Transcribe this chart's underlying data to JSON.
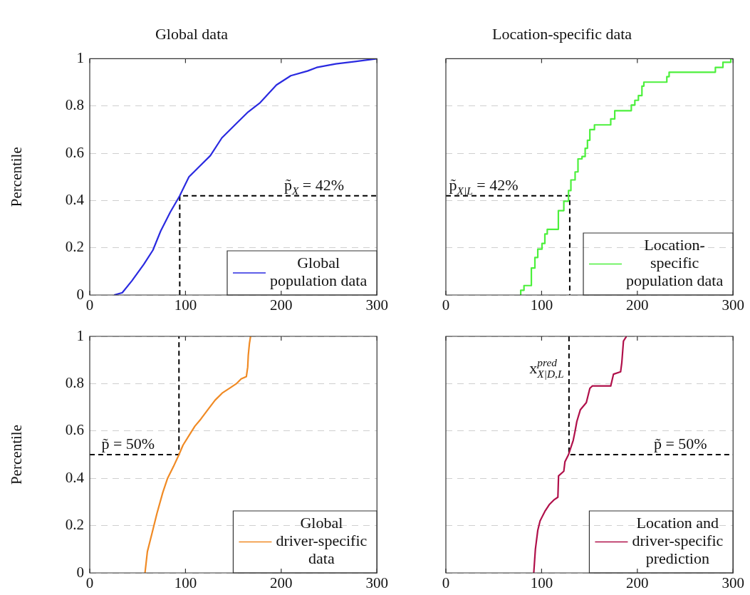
{
  "chart_data": [
    {
      "type": "line",
      "title": "Global data",
      "ylabel": "Percentile",
      "xlim": [
        0,
        300
      ],
      "xticks": [
        0,
        100,
        200,
        300
      ],
      "ylim": [
        0,
        1
      ],
      "yticks": [
        0,
        0.2,
        0.4,
        0.6,
        0.8,
        1
      ],
      "grid": "y",
      "legend": "bottom right",
      "marker": "none",
      "series": [
        {
          "name": "Global population data",
          "color": "#2a2ae0",
          "x": [
            25.5,
            34,
            44,
            56.5,
            66,
            74,
            84,
            94,
            103.6,
            113.5,
            126,
            138,
            153,
            165.5,
            178,
            195,
            210,
            227.5,
            237,
            257,
            277,
            300
          ],
          "values": [
            0,
            0.01,
            0.06,
            0.13,
            0.19,
            0.27,
            0.35,
            0.42,
            0.5,
            0.54,
            0.59,
            0.665,
            0.725,
            0.775,
            0.814,
            0.889,
            0.928,
            0.948,
            0.963,
            0.978,
            0.988,
            1
          ]
        },
        {
          "color": "#000000",
          "line_style": "dashed",
          "x": [
            94,
            94,
            300
          ],
          "values": [
            0,
            0.42,
            0.42
          ]
        }
      ],
      "annotations": [
        {
          "text": "p̃$_{X}$ = 42%",
          "x": 235,
          "y": 0.42
        }
      ]
    },
    {
      "type": "line",
      "title": "Location-specific data",
      "xlim": [
        0,
        300
      ],
      "xticks": [
        0,
        100,
        200,
        300
      ],
      "ylim": [
        0,
        1
      ],
      "yticks": [
        0,
        0.2,
        0.4,
        0.6,
        0.8,
        1
      ],
      "grid": "y",
      "legend": "bottom right",
      "marker": "none",
      "tick_labels": "x",
      "series": [
        {
          "name": "Location-specific population data",
          "type": "step",
          "color": "#4cf03c",
          "x": [
            78.2,
            78.2,
            81.6,
            89.3,
            93,
            96,
            100.4,
            103.4,
            105.9,
            117.5,
            123.2,
            128.1,
            130.6,
            135,
            138,
            142.2,
            145.5,
            147.9,
            150.4,
            155.2,
            172.2,
            176.4,
            193.7,
            197.4,
            201.1,
            204.8,
            206.8,
            230.8,
            233.2,
            281.5,
            289.4,
            297.6,
            300
          ],
          "values": [
            0,
            0.02,
            0.04,
            0.114,
            0.159,
            0.194,
            0.218,
            0.258,
            0.278,
            0.357,
            0.397,
            0.442,
            0.487,
            0.521,
            0.576,
            0.586,
            0.621,
            0.655,
            0.7,
            0.72,
            0.745,
            0.78,
            0.804,
            0.824,
            0.844,
            0.884,
            0.901,
            0.924,
            0.943,
            0.963,
            0.985,
            1,
            1
          ]
        },
        {
          "color": "#000000",
          "line_style": "dashed",
          "x": [
            0,
            129.4,
            129.4
          ],
          "values": [
            0.42,
            0.42,
            0
          ]
        }
      ],
      "annotations": [
        {
          "text": "p̃$_{X|L}$ = 42%",
          "x": 40,
          "y": 0.42
        }
      ]
    },
    {
      "type": "line",
      "ylabel": "Percentile",
      "xlim": [
        0,
        300
      ],
      "xticks": [
        0,
        100,
        200,
        300
      ],
      "ylim": [
        0,
        1
      ],
      "yticks": [
        0,
        0.2,
        0.4,
        0.6,
        0.8,
        1
      ],
      "grid": "y",
      "legend": "bottom right",
      "marker": "none",
      "series": [
        {
          "name": "Global driver-specific data",
          "color": "#f08a24",
          "x": [
            57.7,
            60.2,
            65.2,
            70.1,
            76.3,
            81.3,
            87.5,
            93.2,
            97.4,
            103.6,
            109.8,
            116,
            123.4,
            130.9,
            138.3,
            145.7,
            153.2,
            158.1,
            163.6,
            165,
            165.6,
            166.8,
            168
          ],
          "values": [
            0,
            0.09,
            0.17,
            0.25,
            0.34,
            0.4,
            0.45,
            0.5,
            0.54,
            0.58,
            0.62,
            0.65,
            0.69,
            0.73,
            0.76,
            0.78,
            0.8,
            0.82,
            0.83,
            0.87,
            0.92,
            0.97,
            1
          ]
        },
        {
          "color": "#000000",
          "line_style": "dashed",
          "x": [
            0,
            93.2,
            93.2
          ],
          "values": [
            0.5,
            0.5,
            1
          ]
        }
      ],
      "annotations": [
        {
          "text": "p̃ = 50%",
          "x": 40,
          "y": 0.5
        }
      ]
    },
    {
      "type": "line",
      "xlim": [
        0,
        300
      ],
      "xticks": [
        0,
        100,
        200,
        300
      ],
      "ylim": [
        0,
        1
      ],
      "yticks": [
        0,
        0.2,
        0.4,
        0.6,
        0.8,
        1
      ],
      "grid": "y",
      "legend": "bottom right",
      "marker": "none",
      "tick_labels": "x",
      "series": [
        {
          "name": "Location and driver-specific prediction",
          "color": "#b0104a",
          "x": [
            91.8,
            93.5,
            96,
            98.4,
            103.4,
            108.3,
            113.3,
            117,
            117.7,
            123.2,
            124.4,
            128.1,
            133,
            135,
            136.8,
            140.5,
            146.7,
            150.4,
            152.9,
            172.2,
            175.1,
            182.5,
            183.8,
            185.5,
            188.7
          ],
          "values": [
            0,
            0.1,
            0.18,
            0.22,
            0.26,
            0.29,
            0.31,
            0.32,
            0.41,
            0.43,
            0.47,
            0.5,
            0.56,
            0.6,
            0.64,
            0.69,
            0.72,
            0.78,
            0.79,
            0.79,
            0.84,
            0.85,
            0.89,
            0.98,
            1
          ]
        },
        {
          "color": "#000000",
          "line_style": "dashed",
          "x": [
            128.6,
            128.6,
            300
          ],
          "values": [
            1,
            0.5,
            0.5
          ]
        }
      ],
      "annotations": [
        {
          "text": "p̃ = 50%",
          "x": 245,
          "y": 0.5
        },
        {
          "text": "x$^{pred}$$_{X|D,L}$",
          "x": 128.6,
          "y": 0.82
        }
      ]
    }
  ]
}
